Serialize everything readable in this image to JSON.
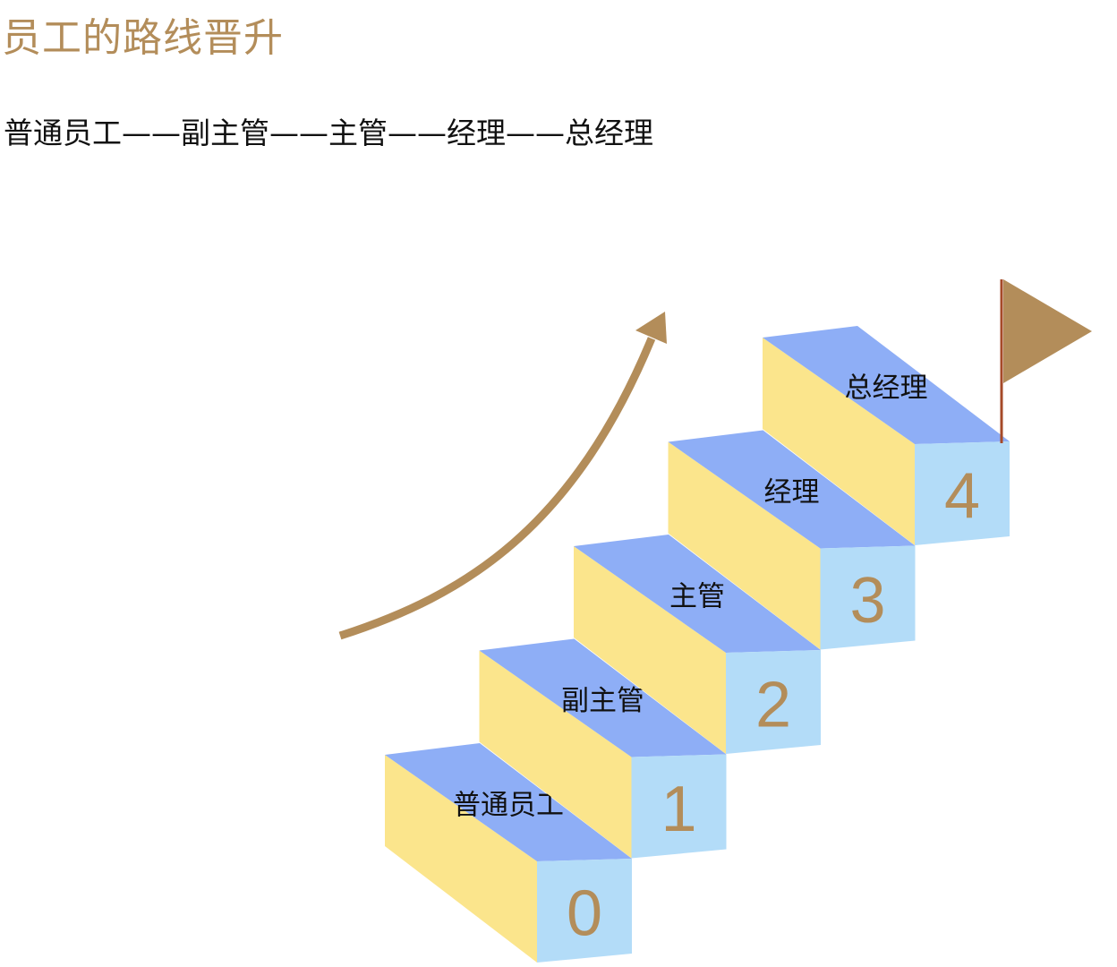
{
  "title": "员工的路线晋升",
  "path_text": "普通员工——副主管——主管——经理——总经理",
  "steps": [
    {
      "number": "0",
      "label": "普通员工"
    },
    {
      "number": "1",
      "label": "副主管"
    },
    {
      "number": "2",
      "label": "主管"
    },
    {
      "number": "3",
      "label": "经理"
    },
    {
      "number": "4",
      "label": "总经理"
    }
  ],
  "colors": {
    "accent": "#B38D5A",
    "step_top": "#8EAEF6",
    "step_side": "#FBE58C",
    "step_front": "#B3DCF8",
    "flag_pole": "#A64A28"
  }
}
